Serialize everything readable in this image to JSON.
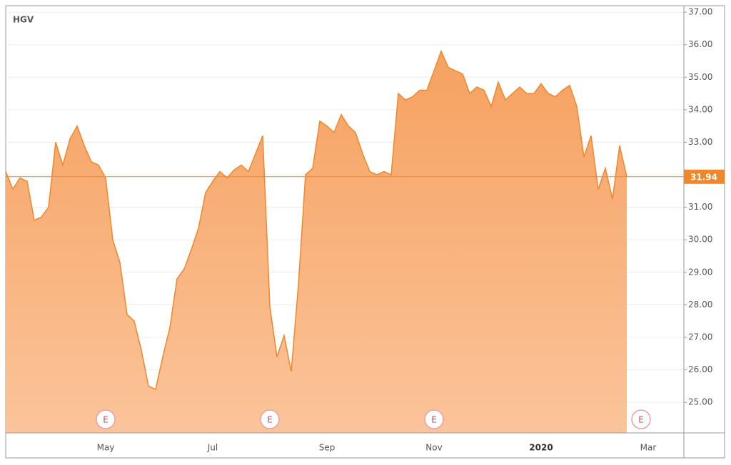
{
  "chart_data": {
    "type": "area",
    "title": "HGV",
    "categories": [
      null,
      null,
      null,
      null,
      null,
      null,
      null,
      null,
      null,
      null,
      null,
      null,
      null,
      null,
      "May",
      null,
      null,
      null,
      null,
      null,
      null,
      null,
      null,
      null,
      null,
      null,
      null,
      null,
      null,
      "Jul",
      null,
      null,
      null,
      null,
      null,
      null,
      null,
      null,
      null,
      null,
      null,
      null,
      null,
      null,
      null,
      "Sep",
      null,
      null,
      null,
      null,
      null,
      null,
      null,
      null,
      null,
      null,
      null,
      null,
      null,
      null,
      "Nov",
      null,
      null,
      null,
      null,
      null,
      null,
      null,
      null,
      null,
      null,
      null,
      null,
      null,
      null,
      "2020",
      null,
      null,
      null,
      null,
      null,
      null,
      null,
      null,
      null,
      null,
      null,
      null,
      null,
      null,
      "Mar",
      null,
      null,
      null,
      null
    ],
    "values": [
      32.1,
      31.56,
      31.9,
      31.8,
      30.6,
      30.7,
      31.0,
      33.0,
      32.3,
      33.1,
      33.5,
      32.9,
      32.4,
      32.3,
      31.9,
      30.0,
      29.3,
      27.7,
      27.5,
      26.6,
      25.5,
      25.4,
      26.4,
      27.3,
      28.8,
      29.1,
      29.7,
      30.35,
      31.45,
      31.8,
      32.1,
      31.9,
      32.15,
      32.3,
      32.1,
      32.65,
      33.2,
      27.95,
      26.4,
      27.05,
      25.95,
      28.6,
      32.0,
      32.2,
      33.65,
      33.5,
      33.3,
      33.85,
      33.5,
      33.3,
      32.65,
      32.1,
      32.0,
      32.1,
      32.0,
      34.5,
      34.3,
      34.4,
      34.6,
      34.6,
      35.2,
      35.8,
      35.3,
      35.2,
      35.1,
      34.5,
      34.7,
      34.6,
      34.1,
      34.85,
      34.3,
      34.5,
      34.7,
      34.5,
      34.5,
      34.8,
      34.5,
      34.4,
      34.6,
      34.75,
      34.1,
      32.55,
      33.2,
      31.55,
      32.2,
      31.25,
      32.9,
      31.94,
      null,
      null,
      null,
      null,
      null,
      null,
      null
    ],
    "color": "#f0872a",
    "last_price": 31.94,
    "earnings": [
      {
        "index": 14,
        "label": "E"
      },
      {
        "index": 37,
        "label": "E"
      },
      {
        "index": 60,
        "label": "E"
      },
      {
        "index": 89,
        "label": "E"
      }
    ],
    "ylim": [
      24.06,
      37.2
    ],
    "yticks": [
      {
        "value": 25,
        "label": "25.00"
      },
      {
        "value": 26,
        "label": "26.00"
      },
      {
        "value": 27,
        "label": "27.00"
      },
      {
        "value": 28,
        "label": "28.00"
      },
      {
        "value": 29,
        "label": "29.00"
      },
      {
        "value": 30,
        "label": "30.00"
      },
      {
        "value": 31,
        "label": "31.00"
      },
      {
        "value": 32,
        "label": "32.00"
      },
      {
        "value": 33,
        "label": "33.00"
      },
      {
        "value": 34,
        "label": "34.00"
      },
      {
        "value": 35,
        "label": "35.00"
      },
      {
        "value": 36,
        "label": "36.00"
      },
      {
        "value": 37,
        "label": "37.00"
      }
    ],
    "grid": true
  }
}
